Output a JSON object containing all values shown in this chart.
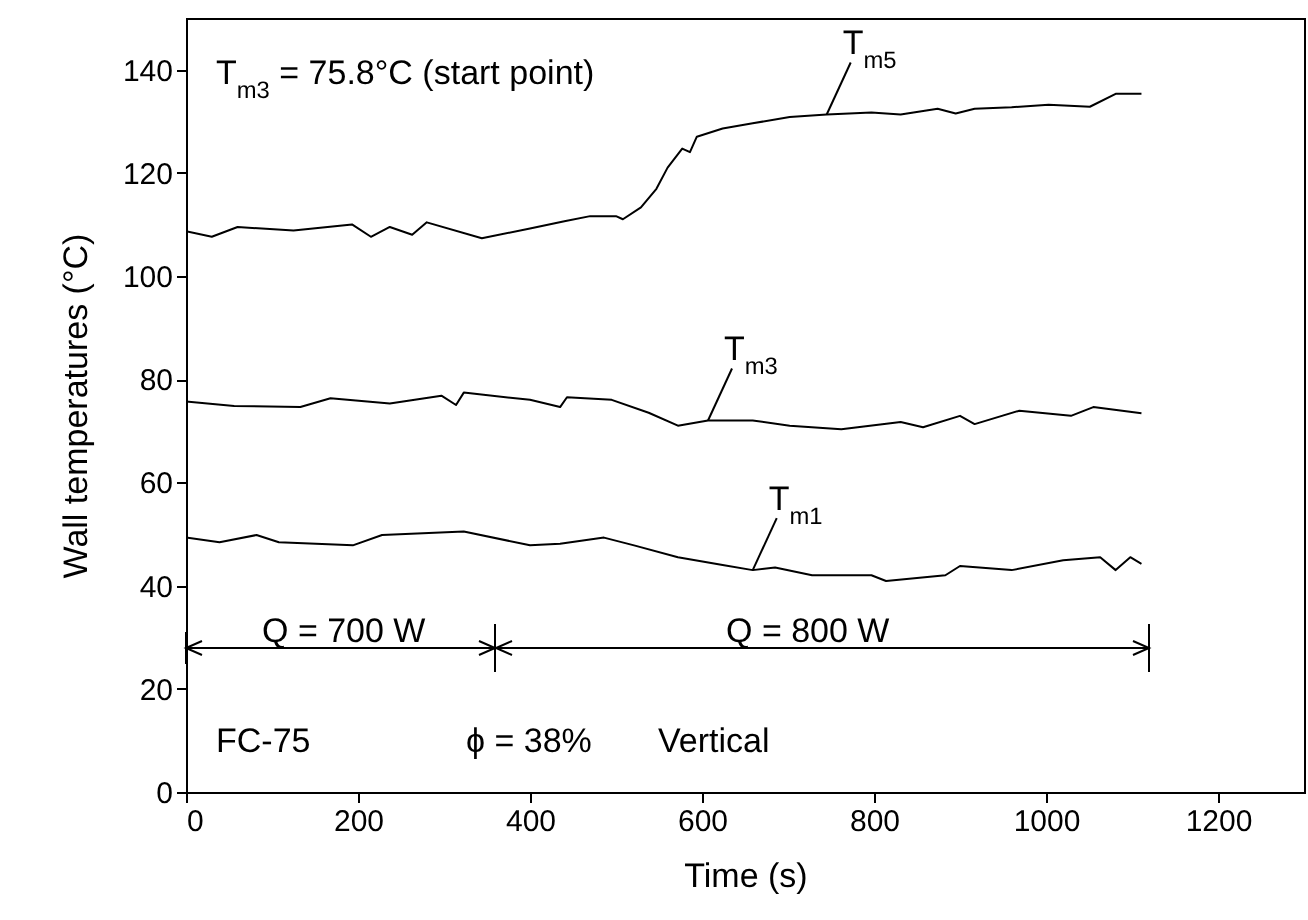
{
  "chart_data": {
    "type": "line",
    "xlabel": "Time (s)",
    "ylabel": "Wall temperatures (°C)",
    "xlim": [
      0,
      1300
    ],
    "xticks": [
      0,
      200,
      400,
      600,
      800,
      1000,
      1200
    ],
    "ylim": [
      0,
      150
    ],
    "yticks": [
      0,
      20,
      40,
      60,
      80,
      100,
      120,
      140
    ],
    "grid": false,
    "marker": "none",
    "line_style": "solid",
    "series": [
      {
        "name": "T$_{m5}$",
        "color": "#000000",
        "x": [
          0,
          30,
          60,
          125,
          193,
          215,
          237,
          263,
          280,
          344,
          400,
          440,
          470,
          500,
          508,
          529,
          547,
          560,
          577,
          586,
          594,
          624,
          659,
          702,
          745,
          797,
          831,
          874,
          895,
          917,
          960,
          1003,
          1051,
          1081,
          1111
        ],
        "values": [
          108.7,
          107.6,
          109.5,
          108.8,
          110,
          107.6,
          109.5,
          108,
          110.4,
          107.3,
          109.2,
          110.6,
          111.6,
          111.6,
          111,
          113.3,
          116.9,
          121,
          124.7,
          124,
          127,
          128.6,
          129.6,
          130.8,
          131.3,
          131.7,
          131.3,
          132.4,
          131.5,
          132.4,
          132.7,
          133.2,
          132.8,
          135.3,
          135.3
        ]
      },
      {
        "name": "T$_{m3}$",
        "color": "#000000",
        "x": [
          0,
          56,
          133,
          168,
          237,
          297,
          314,
          323,
          400,
          435,
          443,
          495,
          538,
          572,
          607,
          659,
          702,
          762,
          831,
          857,
          900,
          917,
          969,
          1029,
          1055,
          1111
        ],
        "values": [
          75.7,
          74.8,
          74.6,
          76.3,
          75.3,
          76.8,
          75,
          77.4,
          76,
          74.6,
          76.5,
          76,
          73.5,
          71,
          72,
          72,
          71,
          70.3,
          71.7,
          70.7,
          72.9,
          71.3,
          73.9,
          72.9,
          74.6,
          73.4
        ]
      },
      {
        "name": "T$_{m1}$",
        "color": "#000000",
        "x": [
          0,
          39,
          82,
          108,
          194,
          228,
          323,
          400,
          435,
          486,
          521,
          572,
          624,
          659,
          685,
          728,
          797,
          814,
          883,
          900,
          960,
          1020,
          1063,
          1081,
          1098,
          1111
        ],
        "values": [
          49.3,
          48.4,
          49.8,
          48.4,
          47.8,
          49.8,
          50.5,
          47.8,
          48.1,
          49.3,
          47.8,
          45.5,
          44,
          43,
          43.5,
          42,
          42,
          40.9,
          42,
          43.8,
          43,
          44.9,
          45.5,
          43,
          45.5,
          44.2
        ]
      }
    ],
    "annotations": [
      "T$_{m3}$ = 75.8°C (start point)",
      "FC-75",
      "ϕ = 38%",
      "Vertical",
      "Q = 700 W",
      "Q = 800 W"
    ]
  }
}
